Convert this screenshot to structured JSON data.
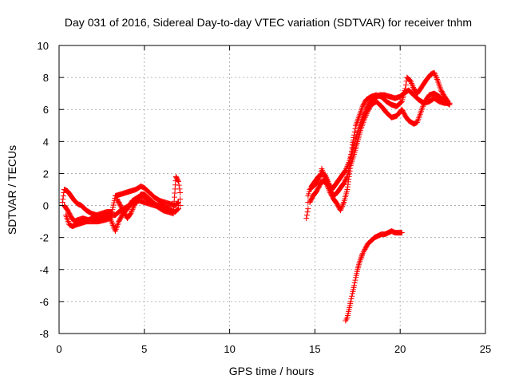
{
  "chart_data": {
    "type": "scatter",
    "title": "Day 031 of 2016, Sidereal Day-to-day VTEC variation (SDTVAR) for receiver tnhm",
    "xlabel": "GPS time / hours",
    "ylabel": "SDTVAR / TECUs",
    "xlim": [
      0,
      25
    ],
    "ylim": [
      -8,
      10
    ],
    "xticks": [
      "0",
      "5",
      "10",
      "15",
      "20",
      "25"
    ],
    "yticks": [
      "-8",
      "-6",
      "-4",
      "-2",
      "0",
      "2",
      "4",
      "6",
      "8",
      "10"
    ],
    "grid": true,
    "marker": "+",
    "color": "#ff0000",
    "series": [
      {
        "segments": [
          [
            [
              0.2,
              0.2
            ],
            [
              0.3,
              1.0
            ],
            [
              0.5,
              0.9
            ],
            [
              0.7,
              0.6
            ],
            [
              0.9,
              0.3
            ],
            [
              1.1,
              0.1
            ],
            [
              1.3,
              0.0
            ],
            [
              1.6,
              -0.3
            ],
            [
              1.9,
              -0.5
            ],
            [
              2.2,
              -0.6
            ],
            [
              2.5,
              -0.5
            ],
            [
              2.8,
              -0.4
            ],
            [
              3.1,
              -0.4
            ],
            [
              3.3,
              0.6
            ],
            [
              3.6,
              0.7
            ],
            [
              3.9,
              0.8
            ],
            [
              4.2,
              0.9
            ],
            [
              4.5,
              1.0
            ],
            [
              4.8,
              1.2
            ],
            [
              5.0,
              1.1
            ],
            [
              5.3,
              0.8
            ],
            [
              5.6,
              0.5
            ],
            [
              5.9,
              0.3
            ],
            [
              6.2,
              0.2
            ],
            [
              6.5,
              0.1
            ],
            [
              6.8,
              0.0
            ],
            [
              7.0,
              0.2
            ]
          ],
          [
            [
              0.3,
              0.0
            ],
            [
              0.5,
              -0.3
            ],
            [
              0.7,
              -0.7
            ],
            [
              0.9,
              -1.0
            ],
            [
              1.1,
              -0.9
            ],
            [
              1.4,
              -0.8
            ],
            [
              1.7,
              -0.9
            ],
            [
              2.0,
              -0.8
            ],
            [
              2.4,
              -0.8
            ],
            [
              2.7,
              -0.7
            ],
            [
              3.0,
              -0.6
            ],
            [
              3.3,
              -0.6
            ],
            [
              3.5,
              -0.4
            ],
            [
              3.8,
              -0.2
            ],
            [
              4.1,
              0.0
            ],
            [
              4.4,
              0.2
            ],
            [
              4.7,
              0.3
            ],
            [
              5.0,
              0.2
            ],
            [
              5.3,
              0.1
            ],
            [
              5.6,
              0.0
            ],
            [
              5.9,
              -0.1
            ],
            [
              6.2,
              -0.2
            ],
            [
              6.5,
              -0.3
            ],
            [
              6.8,
              -0.4
            ],
            [
              7.0,
              -0.2
            ]
          ],
          [
            [
              0.4,
              -0.6
            ],
            [
              0.6,
              -1.2
            ],
            [
              0.8,
              -1.3
            ],
            [
              1.0,
              -1.2
            ],
            [
              1.3,
              -1.1
            ],
            [
              1.6,
              -1.0
            ],
            [
              1.9,
              -1.0
            ],
            [
              2.3,
              -1.0
            ],
            [
              2.7,
              -0.9
            ],
            [
              3.0,
              -0.8
            ],
            [
              3.3,
              -1.6
            ],
            [
              3.5,
              -1.0
            ],
            [
              3.7,
              -0.6
            ],
            [
              4.0,
              -0.2
            ],
            [
              4.3,
              0.3
            ],
            [
              4.6,
              0.5
            ],
            [
              4.9,
              0.6
            ],
            [
              5.2,
              0.4
            ],
            [
              5.5,
              0.2
            ],
            [
              5.8,
              -0.1
            ],
            [
              6.1,
              -0.3
            ],
            [
              6.4,
              -0.4
            ],
            [
              6.7,
              -0.5
            ],
            [
              6.85,
              1.8
            ],
            [
              7.0,
              1.5
            ],
            [
              7.1,
              0.8
            ],
            [
              7.1,
              0.0
            ]
          ],
          [
            [
              3.4,
              0.4
            ],
            [
              3.6,
              0.0
            ],
            [
              3.8,
              -0.4
            ],
            [
              4.0,
              -0.8
            ],
            [
              4.2,
              -0.5
            ],
            [
              4.4,
              0.0
            ],
            [
              4.6,
              0.4
            ],
            [
              4.8,
              0.7
            ],
            [
              5.0,
              0.7
            ],
            [
              5.2,
              0.5
            ],
            [
              5.4,
              0.3
            ],
            [
              5.6,
              0.1
            ],
            [
              5.8,
              0.0
            ],
            [
              6.0,
              0.1
            ],
            [
              6.2,
              -0.1
            ],
            [
              6.4,
              -0.2
            ],
            [
              6.6,
              -0.3
            ]
          ]
        ]
      },
      {
        "segments": [
          [
            [
              14.5,
              -0.8
            ],
            [
              14.6,
              -0.2
            ],
            [
              14.6,
              0.6
            ],
            [
              14.7,
              1.0
            ],
            [
              14.9,
              1.2
            ],
            [
              15.1,
              1.4
            ],
            [
              15.3,
              1.8
            ],
            [
              15.4,
              2.3
            ],
            [
              15.5,
              2.0
            ],
            [
              15.7,
              1.6
            ],
            [
              15.9,
              1.0
            ],
            [
              16.1,
              0.6
            ],
            [
              16.3,
              0.8
            ],
            [
              16.5,
              1.1
            ],
            [
              16.7,
              1.4
            ],
            [
              16.9,
              1.8
            ],
            [
              17.0,
              2.3
            ],
            [
              17.1,
              3.0
            ],
            [
              17.2,
              3.8
            ],
            [
              17.3,
              4.4
            ],
            [
              17.4,
              5.0
            ],
            [
              17.6,
              5.6
            ],
            [
              17.8,
              6.2
            ],
            [
              18.0,
              6.6
            ],
            [
              18.3,
              6.8
            ],
            [
              18.6,
              6.9
            ],
            [
              18.9,
              6.8
            ],
            [
              19.2,
              6.5
            ],
            [
              19.5,
              6.3
            ],
            [
              19.8,
              6.2
            ],
            [
              20.1,
              6.5
            ],
            [
              20.3,
              7.3
            ],
            [
              20.4,
              8.0
            ],
            [
              20.6,
              7.8
            ],
            [
              20.8,
              7.3
            ],
            [
              21.0,
              7.0
            ],
            [
              21.2,
              7.3
            ],
            [
              21.5,
              7.8
            ],
            [
              21.8,
              8.2
            ],
            [
              22.0,
              8.3
            ],
            [
              22.2,
              7.8
            ],
            [
              22.4,
              7.2
            ],
            [
              22.6,
              6.8
            ],
            [
              22.8,
              6.5
            ]
          ],
          [
            [
              14.7,
              0.2
            ],
            [
              14.9,
              0.6
            ],
            [
              15.1,
              0.9
            ],
            [
              15.3,
              1.3
            ],
            [
              15.5,
              1.6
            ],
            [
              15.7,
              1.3
            ],
            [
              15.9,
              0.8
            ],
            [
              16.1,
              0.4
            ],
            [
              16.3,
              0.1
            ],
            [
              16.5,
              -0.3
            ],
            [
              16.7,
              0.2
            ],
            [
              16.9,
              1.0
            ],
            [
              17.0,
              1.8
            ],
            [
              17.1,
              2.5
            ],
            [
              17.3,
              3.2
            ],
            [
              17.5,
              4.0
            ],
            [
              17.7,
              4.8
            ],
            [
              17.9,
              5.4
            ],
            [
              18.1,
              5.9
            ],
            [
              18.3,
              6.3
            ],
            [
              18.6,
              6.5
            ],
            [
              18.9,
              6.2
            ],
            [
              19.2,
              5.8
            ],
            [
              19.5,
              5.5
            ],
            [
              19.8,
              5.6
            ],
            [
              20.1,
              6.0
            ],
            [
              20.3,
              5.6
            ],
            [
              20.5,
              5.3
            ],
            [
              20.8,
              5.1
            ],
            [
              21.0,
              5.2
            ],
            [
              21.2,
              5.8
            ],
            [
              21.4,
              6.4
            ],
            [
              21.7,
              6.9
            ],
            [
              22.0,
              7.0
            ],
            [
              22.3,
              6.8
            ],
            [
              22.6,
              6.5
            ],
            [
              22.9,
              6.3
            ]
          ],
          [
            [
              14.8,
              1.2
            ],
            [
              15.0,
              1.5
            ],
            [
              15.2,
              1.8
            ],
            [
              15.4,
              2.0
            ],
            [
              15.6,
              1.9
            ],
            [
              15.8,
              1.4
            ],
            [
              16.0,
              1.0
            ],
            [
              16.2,
              1.3
            ],
            [
              16.4,
              1.6
            ],
            [
              16.6,
              1.9
            ],
            [
              16.8,
              2.2
            ],
            [
              17.0,
              2.7
            ],
            [
              17.2,
              3.4
            ],
            [
              17.4,
              4.2
            ],
            [
              17.6,
              4.9
            ],
            [
              17.8,
              5.5
            ],
            [
              18.0,
              6.0
            ],
            [
              18.2,
              6.4
            ],
            [
              18.5,
              6.7
            ],
            [
              18.8,
              6.9
            ],
            [
              19.1,
              6.9
            ],
            [
              19.4,
              6.8
            ],
            [
              19.7,
              6.7
            ],
            [
              20.0,
              6.8
            ],
            [
              20.2,
              7.0
            ],
            [
              20.5,
              7.2
            ],
            [
              20.8,
              6.9
            ],
            [
              21.1,
              6.6
            ],
            [
              21.4,
              6.4
            ],
            [
              21.7,
              6.5
            ],
            [
              22.0,
              6.7
            ],
            [
              22.3,
              6.5
            ],
            [
              22.6,
              6.4
            ],
            [
              22.9,
              6.4
            ]
          ]
        ]
      },
      {
        "segments": [
          [
            [
              16.8,
              -7.2
            ],
            [
              16.9,
              -7.0
            ],
            [
              17.0,
              -6.5
            ],
            [
              17.1,
              -6.0
            ],
            [
              17.2,
              -5.5
            ],
            [
              17.3,
              -5.0
            ],
            [
              17.4,
              -4.5
            ],
            [
              17.5,
              -4.0
            ],
            [
              17.6,
              -3.6
            ],
            [
              17.7,
              -3.3
            ],
            [
              17.8,
              -3.0
            ],
            [
              17.9,
              -2.8
            ],
            [
              18.0,
              -2.6
            ],
            [
              18.1,
              -2.4
            ],
            [
              18.3,
              -2.2
            ],
            [
              18.5,
              -2.0
            ],
            [
              18.7,
              -1.9
            ],
            [
              18.9,
              -1.8
            ],
            [
              19.1,
              -1.8
            ],
            [
              19.3,
              -1.7
            ],
            [
              19.5,
              -1.6
            ],
            [
              19.7,
              -1.7
            ],
            [
              19.9,
              -1.7
            ],
            [
              20.1,
              -1.7
            ]
          ]
        ]
      }
    ]
  }
}
